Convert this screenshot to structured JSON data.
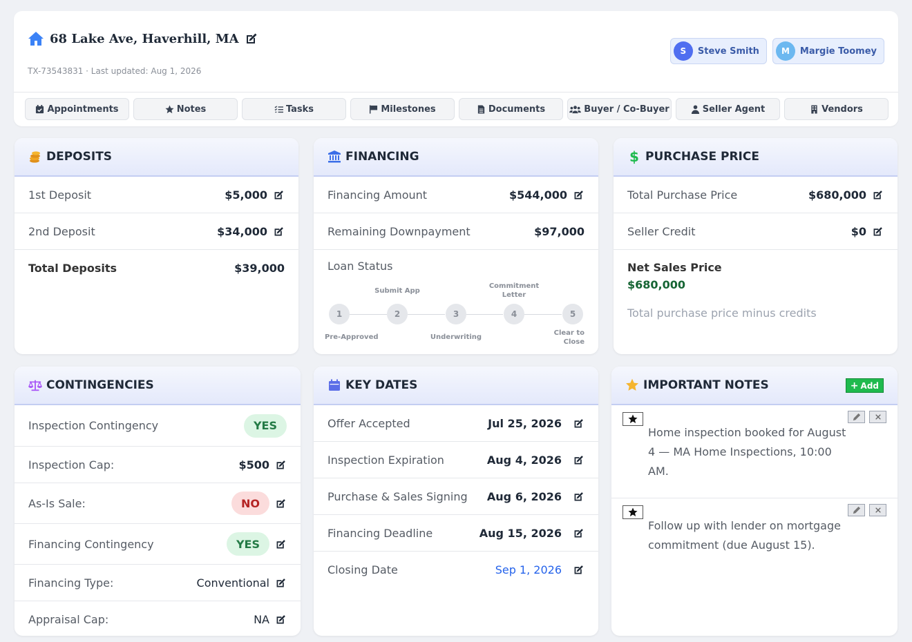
{
  "header": {
    "title": "68 Lake Ave, Haverhill, MA",
    "subtitle": "TX-73543831 · Last updated: Aug 1, 2026",
    "agents": [
      {
        "initial": "S",
        "name": "Steve Smith"
      },
      {
        "initial": "M",
        "name": "Margie Toomey"
      }
    ],
    "tabs": [
      "Appointments",
      "Notes",
      "Tasks",
      "Milestones",
      "Documents",
      "Buyer / Co-Buyer",
      "Seller Agent",
      "Vendors"
    ]
  },
  "deposits": {
    "title": "DEPOSITS",
    "rows": [
      {
        "label": "1st Deposit",
        "value": "$5,000"
      },
      {
        "label": "2nd Deposit",
        "value": "$34,000"
      },
      {
        "label": "Total Deposits",
        "value": "$39,000"
      }
    ]
  },
  "financing": {
    "title": "FINANCING",
    "rows": [
      {
        "label": "Financing Amount",
        "value": "$544,000"
      },
      {
        "label": "Remaining Downpayment",
        "value": "$97,000"
      }
    ],
    "loan_status_label": "Loan Status",
    "steps": [
      {
        "num": "1",
        "label": "Pre-Approved"
      },
      {
        "num": "2",
        "label": "Submit App"
      },
      {
        "num": "3",
        "label": "Underwriting"
      },
      {
        "num": "4",
        "label": "Commitment Letter"
      },
      {
        "num": "5",
        "label": "Clear to Close"
      }
    ]
  },
  "purchase": {
    "title": "PURCHASE PRICE",
    "rows": [
      {
        "label": "Total Purchase Price",
        "value": "$680,000"
      },
      {
        "label": "Seller Credit",
        "value": "$0"
      }
    ],
    "net_label": "Net Sales Price",
    "net_value": "$680,000",
    "net_note": "Total purchase price minus credits"
  },
  "contingencies": {
    "title": "CONTINGENCIES",
    "rows": [
      {
        "label": "Inspection Contingency",
        "value": "YES"
      },
      {
        "label": "Inspection Cap:",
        "value": "$500"
      },
      {
        "label": "As-Is Sale:",
        "value": "NO"
      },
      {
        "label": "Financing Contingency",
        "value": "YES"
      },
      {
        "label": "Financing Type:",
        "value": "Conventional"
      },
      {
        "label": "Appraisal Cap:",
        "value": "NA"
      }
    ]
  },
  "key_dates": {
    "title": "KEY DATES",
    "rows": [
      {
        "label": "Offer Accepted",
        "value": "Jul 25, 2026"
      },
      {
        "label": "Inspection Expiration",
        "value": "Aug 4, 2026"
      },
      {
        "label": "Purchase & Sales Signing",
        "value": "Aug 6, 2026"
      },
      {
        "label": "Financing Deadline",
        "value": "Aug 15, 2026"
      },
      {
        "label": "Closing Date",
        "value": "Sep 1, 2026"
      }
    ]
  },
  "notes": {
    "title": "IMPORTANT NOTES",
    "add_label": "Add",
    "items": [
      {
        "text": "Home inspection booked for August 4 — MA Home Inspections, 10:00 AM."
      },
      {
        "text": "Follow up with lender on mortgage commitment (due August 15)."
      }
    ]
  },
  "colors": {
    "accent": "#3b82f6",
    "success": "#1fba4e",
    "net_value": "#166534",
    "closing_date": "#2563eb"
  }
}
